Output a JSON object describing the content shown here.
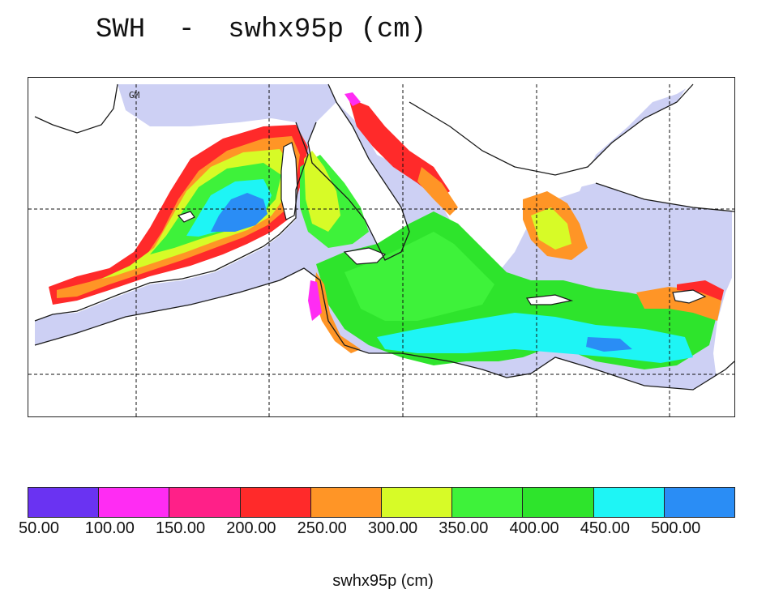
{
  "title": "SWH  -  swhx95p (cm)",
  "map": {
    "region_label": "GM",
    "sea_color": "#cdd0f4",
    "land_color": "#ffffff",
    "coast_color": "#1a1a1a",
    "grid": "dashed"
  },
  "legend": {
    "colors": [
      "#6a33f2",
      "#ff2cf3",
      "#ff2088",
      "#ff2a2a",
      "#ff9526",
      "#d7fb27",
      "#3ef23a",
      "#2ee42c",
      "#1ef5f5",
      "#2a8df5"
    ],
    "tick_labels": [
      "50.00",
      "100.00",
      "150.00",
      "200.00",
      "250.00",
      "300.00",
      "350.00",
      "400.00",
      "450.00",
      "500.00"
    ]
  },
  "caption": "swhx95p (cm)"
}
